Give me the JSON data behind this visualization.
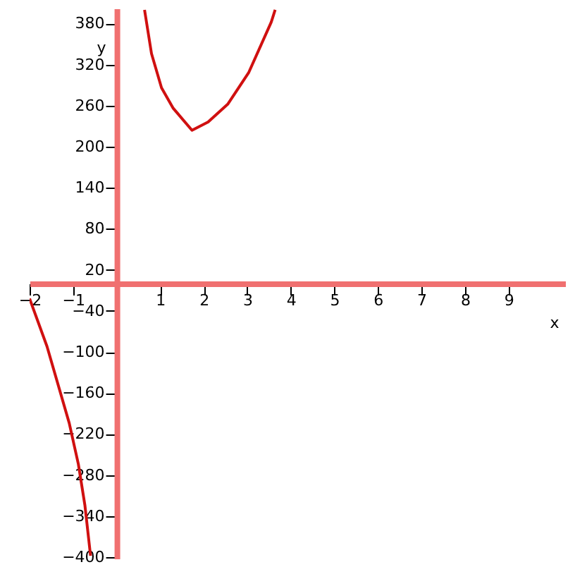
{
  "chart_data": {
    "type": "line",
    "xlabel": "x",
    "ylabel": "y",
    "x": [
      -2,
      -1.6,
      -1.09,
      -0.88,
      -0.73,
      -0.6,
      0,
      0.64,
      0.8,
      1.03,
      1.3,
      1.73,
      2.1,
      2.55,
      3.03,
      3.55,
      3.64
    ],
    "series": [
      {
        "color": "#d01010",
        "values": [
          -22,
          -92,
          -204,
          -264,
          -324,
          -398,
          null,
          400,
          336,
          286,
          256,
          224,
          236,
          262,
          308,
          382,
          400
        ]
      }
    ],
    "xlim": [
      -2,
      10.3
    ],
    "ylim": [
      -402,
      402
    ],
    "xticks": [
      -2,
      -1,
      1,
      2,
      3,
      4,
      5,
      6,
      7,
      8,
      9
    ],
    "yticks": [
      -400,
      -340,
      -280,
      -220,
      -160,
      -100,
      -40,
      20,
      80,
      140,
      200,
      260,
      320,
      380
    ],
    "grid": false,
    "marker": "none",
    "line_style": "solid"
  }
}
